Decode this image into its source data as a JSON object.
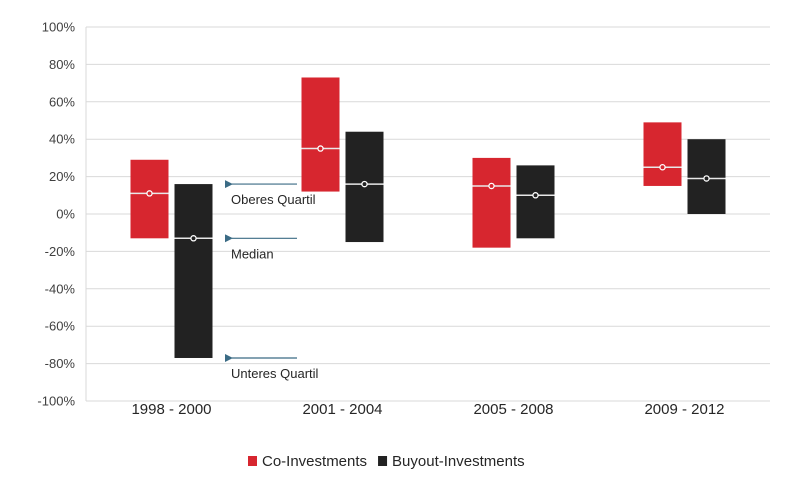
{
  "chart_data": {
    "type": "box",
    "title": "",
    "xlabel": "",
    "ylabel": "",
    "ylim": [
      -100,
      100
    ],
    "y_ticks": [
      100,
      80,
      60,
      40,
      20,
      0,
      -20,
      -40,
      -60,
      -80,
      -100
    ],
    "y_tick_format": "percent",
    "grid": true,
    "categories": [
      "1998 - 2000",
      "2001 - 2004",
      "2005 - 2008",
      "2009 - 2012"
    ],
    "series": [
      {
        "name": "Co-Investments",
        "color": "#d7262f",
        "upper_quartile": [
          29,
          73,
          30,
          49
        ],
        "median": [
          11,
          35,
          15,
          25
        ],
        "lower_quartile": [
          -13,
          12,
          -18,
          15
        ]
      },
      {
        "name": "Buyout-Investments",
        "color": "#222222",
        "upper_quartile": [
          16,
          44,
          26,
          40
        ],
        "median": [
          -13,
          16,
          10,
          19
        ],
        "lower_quartile": [
          -77,
          -15,
          -13,
          0
        ]
      }
    ],
    "annotations": [
      {
        "label": "Oberes Quartil",
        "points_to": "upper_quartile",
        "value": 16
      },
      {
        "label": "Median",
        "points_to": "median",
        "value": -13
      },
      {
        "label": "Unteres Quartil",
        "points_to": "lower_quartile",
        "value": -77
      }
    ],
    "annotation_arrow_color": "#3b6b85",
    "legend": {
      "position": "bottom",
      "entries": [
        "Co-Investments",
        "Buyout-Investments"
      ]
    }
  }
}
